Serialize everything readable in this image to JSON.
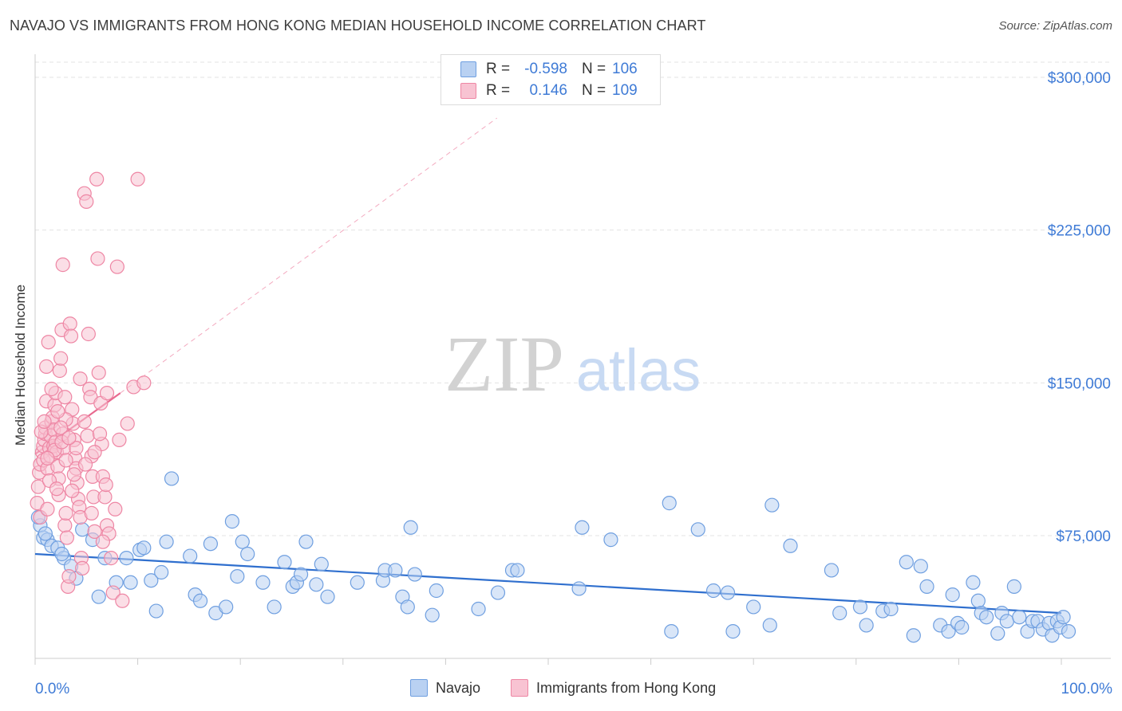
{
  "title": "NAVAJO VS IMMIGRANTS FROM HONG KONG MEDIAN HOUSEHOLD INCOME CORRELATION CHART",
  "source": "Source: ZipAtlas.com",
  "watermark": {
    "zip": "ZIP",
    "atlas": "atlas"
  },
  "legend": {
    "rows": [
      {
        "r_label": "R =",
        "r_value": "-0.598",
        "n_label": "N =",
        "n_value": "106",
        "color": "#6f9fe0",
        "fill": "#b9d1f2"
      },
      {
        "r_label": "R =",
        "r_value": "0.146",
        "n_label": "N =",
        "n_value": "109",
        "color": "#ee86a4",
        "fill": "#f8c3d2"
      }
    ]
  },
  "bottom_legend": [
    {
      "label": "Navajo",
      "color": "#6f9fe0",
      "fill": "#b9d1f2"
    },
    {
      "label": "Immigrants from Hong Kong",
      "color": "#ee86a4",
      "fill": "#f8c3d2"
    }
  ],
  "chart_data": {
    "type": "scatter",
    "title": "NAVAJO VS IMMIGRANTS FROM HONG KONG MEDIAN HOUSEHOLD INCOME CORRELATION CHART",
    "xlabel": "",
    "ylabel": "Median Household Income",
    "xlim": [
      0,
      100
    ],
    "ylim": [
      0,
      310000
    ],
    "x_tick_labels": [
      "0.0%",
      "100.0%"
    ],
    "y_ticks": [
      75000,
      150000,
      225000,
      300000
    ],
    "y_tick_labels": [
      "$75,000",
      "$150,000",
      "$225,000",
      "$300,000"
    ],
    "grid": "horizontal dashed",
    "legend_position": "top-center",
    "series": [
      {
        "name": "Navajo",
        "color": "#6f9fe0",
        "fill": "#b9d1f2",
        "trend": {
          "x0": 0,
          "y0": 66000,
          "x1": 100,
          "y1": 37000
        },
        "points": [
          [
            0.5,
            80000
          ],
          [
            0.8,
            74000
          ],
          [
            1.2,
            73000
          ],
          [
            1.6,
            70000
          ],
          [
            2.2,
            69000
          ],
          [
            2.8,
            64000
          ],
          [
            3.5,
            60000
          ],
          [
            4.0,
            54000
          ],
          [
            4.6,
            78000
          ],
          [
            5.6,
            73000
          ],
          [
            6.2,
            45000
          ],
          [
            6.8,
            64000
          ],
          [
            7.9,
            52000
          ],
          [
            8.9,
            64000
          ],
          [
            9.3,
            52000
          ],
          [
            10.2,
            68000
          ],
          [
            10.6,
            69000
          ],
          [
            11.3,
            53000
          ],
          [
            11.8,
            38000
          ],
          [
            12.3,
            57000
          ],
          [
            12.8,
            72000
          ],
          [
            13.3,
            103000
          ],
          [
            15.1,
            65000
          ],
          [
            15.6,
            46000
          ],
          [
            16.1,
            43000
          ],
          [
            17.1,
            71000
          ],
          [
            17.6,
            37000
          ],
          [
            18.6,
            40000
          ],
          [
            19.2,
            82000
          ],
          [
            19.7,
            55000
          ],
          [
            20.2,
            72000
          ],
          [
            20.7,
            66000
          ],
          [
            22.2,
            52000
          ],
          [
            23.3,
            40000
          ],
          [
            24.3,
            62000
          ],
          [
            25.1,
            50000
          ],
          [
            25.5,
            52000
          ],
          [
            25.9,
            56000
          ],
          [
            26.4,
            72000
          ],
          [
            27.4,
            51000
          ],
          [
            27.9,
            61000
          ],
          [
            28.5,
            45000
          ],
          [
            31.4,
            52000
          ],
          [
            33.9,
            53000
          ],
          [
            34.1,
            58000
          ],
          [
            35.1,
            58000
          ],
          [
            35.8,
            45000
          ],
          [
            36.3,
            40000
          ],
          [
            36.6,
            79000
          ],
          [
            38.7,
            36000
          ],
          [
            39.1,
            48000
          ],
          [
            43.2,
            39000
          ],
          [
            45.1,
            47000
          ],
          [
            46.5,
            58000
          ],
          [
            47.0,
            58000
          ],
          [
            53.0,
            49000
          ],
          [
            53.3,
            79000
          ],
          [
            56.1,
            73000
          ],
          [
            61.8,
            91000
          ],
          [
            62.0,
            28000
          ],
          [
            64.6,
            78000
          ],
          [
            66.1,
            48000
          ],
          [
            67.5,
            47000
          ],
          [
            68.0,
            28000
          ],
          [
            70.0,
            40000
          ],
          [
            71.6,
            31000
          ],
          [
            71.8,
            90000
          ],
          [
            73.6,
            70000
          ],
          [
            77.6,
            58000
          ],
          [
            78.4,
            37000
          ],
          [
            80.4,
            40000
          ],
          [
            81.0,
            31000
          ],
          [
            82.6,
            38000
          ],
          [
            83.4,
            39000
          ],
          [
            84.9,
            62000
          ],
          [
            85.6,
            26000
          ],
          [
            86.3,
            60000
          ],
          [
            86.9,
            50000
          ],
          [
            88.2,
            31000
          ],
          [
            89.0,
            28000
          ],
          [
            89.4,
            46000
          ],
          [
            89.9,
            32000
          ],
          [
            90.3,
            30000
          ],
          [
            91.4,
            52000
          ],
          [
            91.9,
            43000
          ],
          [
            92.2,
            37000
          ],
          [
            92.7,
            35000
          ],
          [
            93.8,
            27000
          ],
          [
            94.2,
            37000
          ],
          [
            94.7,
            33000
          ],
          [
            95.4,
            50000
          ],
          [
            95.9,
            35000
          ],
          [
            96.7,
            28000
          ],
          [
            97.2,
            33000
          ],
          [
            97.7,
            33000
          ],
          [
            98.2,
            29000
          ],
          [
            98.8,
            32000
          ],
          [
            99.1,
            26000
          ],
          [
            99.6,
            33000
          ],
          [
            99.9,
            30000
          ],
          [
            100.2,
            35000
          ],
          [
            100.7,
            28000
          ],
          [
            0.3,
            84000
          ],
          [
            1.0,
            76000
          ],
          [
            2.6,
            66000
          ],
          [
            37.0,
            56000
          ]
        ]
      },
      {
        "name": "Immigrants from Hong Kong",
        "color": "#ee86a4",
        "fill": "#f8c3d2",
        "trend": {
          "x0": 0,
          "y0": 115000,
          "x1": 8.3,
          "y1": 145000
        },
        "trend_ext": {
          "x0": 8.3,
          "y0": 145000,
          "x1": 45,
          "y1": 280000
        },
        "points": [
          [
            0.2,
            91000
          ],
          [
            0.3,
            99000
          ],
          [
            0.4,
            106000
          ],
          [
            0.5,
            110000
          ],
          [
            0.5,
            84000
          ],
          [
            0.7,
            116000
          ],
          [
            0.8,
            119000
          ],
          [
            0.8,
            112000
          ],
          [
            0.9,
            122000
          ],
          [
            1.0,
            125000
          ],
          [
            1.0,
            128000
          ],
          [
            1.1,
            141000
          ],
          [
            1.1,
            158000
          ],
          [
            1.2,
            108000
          ],
          [
            1.2,
            88000
          ],
          [
            1.3,
            170000
          ],
          [
            1.4,
            118000
          ],
          [
            1.5,
            114000
          ],
          [
            1.5,
            124000
          ],
          [
            1.6,
            131000
          ],
          [
            1.7,
            133000
          ],
          [
            1.8,
            119000
          ],
          [
            1.8,
            127000
          ],
          [
            1.9,
            139000
          ],
          [
            2.0,
            145000
          ],
          [
            2.0,
            121000
          ],
          [
            2.1,
            116000
          ],
          [
            2.2,
            109000
          ],
          [
            2.3,
            103000
          ],
          [
            2.3,
            95000
          ],
          [
            2.4,
            156000
          ],
          [
            2.5,
            162000
          ],
          [
            2.6,
            176000
          ],
          [
            2.7,
            208000
          ],
          [
            2.7,
            125000
          ],
          [
            2.8,
            118000
          ],
          [
            2.9,
            80000
          ],
          [
            3.0,
            86000
          ],
          [
            3.1,
            74000
          ],
          [
            3.2,
            50000
          ],
          [
            3.3,
            55000
          ],
          [
            3.4,
            179000
          ],
          [
            3.5,
            173000
          ],
          [
            3.6,
            137000
          ],
          [
            3.7,
            130000
          ],
          [
            3.8,
            122000
          ],
          [
            3.9,
            113000
          ],
          [
            4.0,
            108000
          ],
          [
            4.1,
            101000
          ],
          [
            4.2,
            93000
          ],
          [
            4.3,
            89000
          ],
          [
            4.4,
            84000
          ],
          [
            4.5,
            64000
          ],
          [
            4.6,
            59000
          ],
          [
            4.8,
            243000
          ],
          [
            5.0,
            239000
          ],
          [
            5.2,
            174000
          ],
          [
            5.3,
            147000
          ],
          [
            5.4,
            143000
          ],
          [
            5.5,
            114000
          ],
          [
            5.6,
            104000
          ],
          [
            5.7,
            94000
          ],
          [
            5.8,
            77000
          ],
          [
            6.0,
            250000
          ],
          [
            6.1,
            211000
          ],
          [
            6.2,
            155000
          ],
          [
            6.4,
            140000
          ],
          [
            6.5,
            120000
          ],
          [
            6.6,
            104000
          ],
          [
            6.8,
            94000
          ],
          [
            7.0,
            80000
          ],
          [
            7.2,
            76000
          ],
          [
            7.4,
            64000
          ],
          [
            7.6,
            47000
          ],
          [
            8.0,
            207000
          ],
          [
            8.2,
            122000
          ],
          [
            8.5,
            43000
          ],
          [
            9.0,
            130000
          ],
          [
            9.6,
            148000
          ],
          [
            10.0,
            250000
          ],
          [
            10.6,
            150000
          ],
          [
            3.0,
            132000
          ],
          [
            2.2,
            136000
          ],
          [
            1.6,
            147000
          ],
          [
            4.0,
            118000
          ],
          [
            3.0,
            112000
          ],
          [
            2.5,
            128000
          ],
          [
            1.4,
            102000
          ],
          [
            0.6,
            126000
          ],
          [
            4.8,
            131000
          ],
          [
            5.1,
            124000
          ],
          [
            3.6,
            97000
          ],
          [
            2.9,
            143000
          ],
          [
            6.3,
            125000
          ],
          [
            7.0,
            145000
          ],
          [
            4.4,
            152000
          ],
          [
            1.9,
            117000
          ],
          [
            2.6,
            121000
          ],
          [
            3.3,
            123000
          ],
          [
            5.8,
            116000
          ],
          [
            6.9,
            100000
          ],
          [
            7.8,
            88000
          ],
          [
            0.9,
            131000
          ],
          [
            1.2,
            113000
          ],
          [
            2.1,
            98000
          ],
          [
            3.8,
            105000
          ],
          [
            4.9,
            110000
          ],
          [
            5.5,
            86000
          ],
          [
            6.6,
            72000
          ]
        ]
      }
    ]
  }
}
